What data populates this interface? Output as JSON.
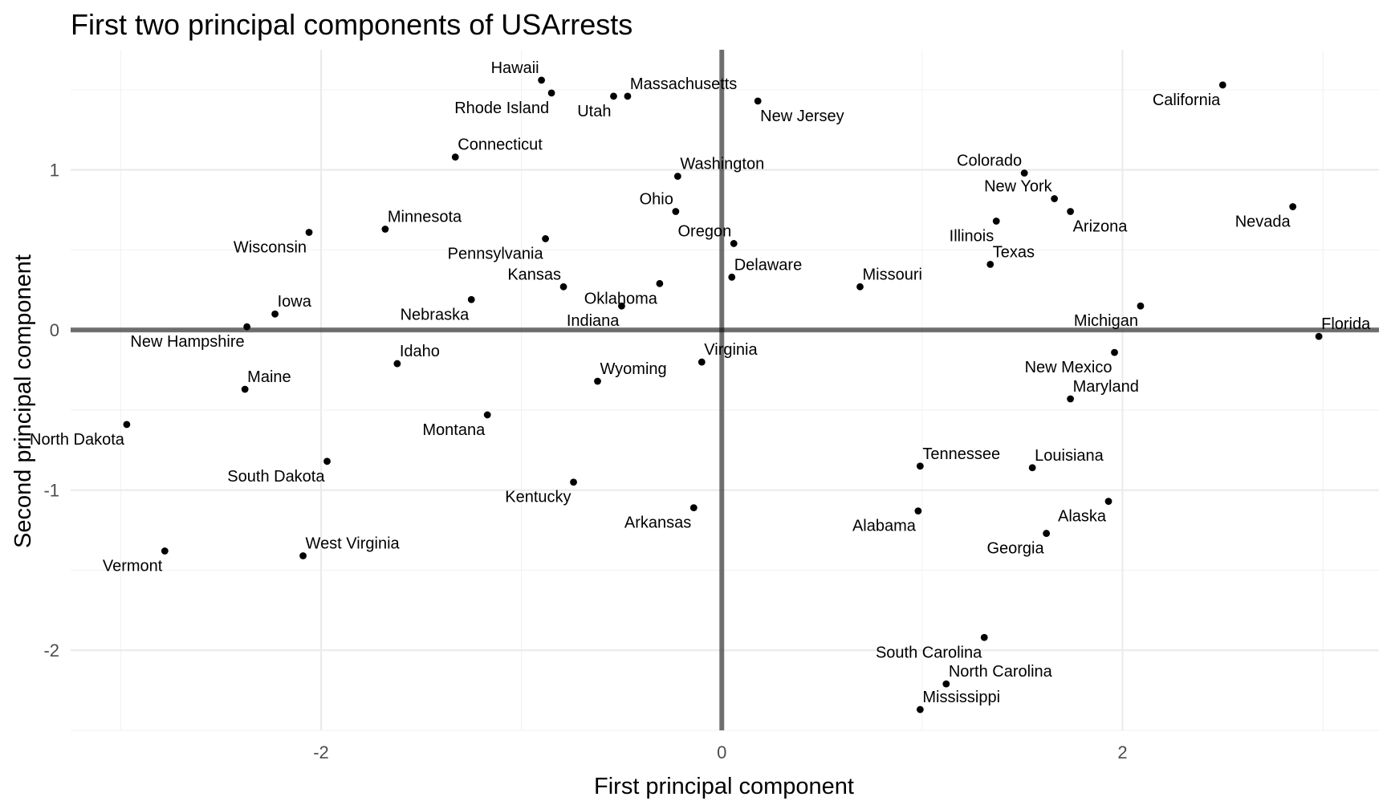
{
  "chart_data": {
    "type": "scatter",
    "title": "First two principal components of USArrests",
    "xlabel": "First principal component",
    "ylabel": "Second principal component",
    "xlim": [
      -3.25,
      3.28
    ],
    "ylim": [
      -2.5,
      1.75
    ],
    "x_ticks": [
      -2,
      0,
      2
    ],
    "y_ticks": [
      -2,
      -1,
      0,
      1
    ],
    "x_tick_labels": [
      "-2",
      "0",
      "2"
    ],
    "y_tick_labels": [
      "-2",
      "-1",
      "0",
      "1"
    ],
    "grid": true,
    "reference_lines": {
      "x": 0,
      "y": 0
    },
    "points": [
      {
        "label": "Hawaii",
        "x": -0.9,
        "y": 1.56,
        "pos": "above-left"
      },
      {
        "label": "Rhode Island",
        "x": -0.85,
        "y": 1.48,
        "pos": "below-left"
      },
      {
        "label": "Utah",
        "x": -0.54,
        "y": 1.46,
        "pos": "below-left"
      },
      {
        "label": "Massachusetts",
        "x": -0.47,
        "y": 1.46,
        "pos": "above-right"
      },
      {
        "label": "New Jersey",
        "x": 0.18,
        "y": 1.43,
        "pos": "below-right"
      },
      {
        "label": "California",
        "x": 2.5,
        "y": 1.53,
        "pos": "below-left"
      },
      {
        "label": "Connecticut",
        "x": -1.33,
        "y": 1.08,
        "pos": "above-right"
      },
      {
        "label": "Washington",
        "x": -0.22,
        "y": 0.96,
        "pos": "above-right"
      },
      {
        "label": "Colorado",
        "x": 1.51,
        "y": 0.98,
        "pos": "above-left"
      },
      {
        "label": "Ohio",
        "x": -0.23,
        "y": 0.74,
        "pos": "above-left"
      },
      {
        "label": "New York",
        "x": 1.66,
        "y": 0.82,
        "pos": "above-left"
      },
      {
        "label": "Arizona",
        "x": 1.74,
        "y": 0.74,
        "pos": "below-right"
      },
      {
        "label": "Nevada",
        "x": 2.85,
        "y": 0.77,
        "pos": "below-left"
      },
      {
        "label": "Minnesota",
        "x": -1.68,
        "y": 0.63,
        "pos": "above-right"
      },
      {
        "label": "Wisconsin",
        "x": -2.06,
        "y": 0.61,
        "pos": "below-left"
      },
      {
        "label": "Pennsylvania",
        "x": -0.88,
        "y": 0.57,
        "pos": "below-left"
      },
      {
        "label": "Oregon",
        "x": 0.06,
        "y": 0.54,
        "pos": "above-left"
      },
      {
        "label": "Illinois",
        "x": 1.37,
        "y": 0.68,
        "pos": "below-left"
      },
      {
        "label": "Texas",
        "x": 1.34,
        "y": 0.41,
        "pos": "above-right"
      },
      {
        "label": "Delaware",
        "x": 0.05,
        "y": 0.33,
        "pos": "above-right"
      },
      {
        "label": "Missouri",
        "x": 0.69,
        "y": 0.27,
        "pos": "above-right"
      },
      {
        "label": "Kansas",
        "x": -0.79,
        "y": 0.27,
        "pos": "above-left"
      },
      {
        "label": "Oklahoma",
        "x": -0.31,
        "y": 0.29,
        "pos": "below-left"
      },
      {
        "label": "Nebraska",
        "x": -1.25,
        "y": 0.19,
        "pos": "below-left"
      },
      {
        "label": "Indiana",
        "x": -0.5,
        "y": 0.15,
        "pos": "below-left"
      },
      {
        "label": "Iowa",
        "x": -2.23,
        "y": 0.1,
        "pos": "above-right"
      },
      {
        "label": "Michigan",
        "x": 2.09,
        "y": 0.15,
        "pos": "below-left"
      },
      {
        "label": "New Hampshire",
        "x": -2.37,
        "y": 0.02,
        "pos": "below-left"
      },
      {
        "label": "Florida",
        "x": 2.98,
        "y": -0.04,
        "pos": "above-right"
      },
      {
        "label": "Idaho",
        "x": -1.62,
        "y": -0.21,
        "pos": "above-right"
      },
      {
        "label": "Virginia",
        "x": -0.1,
        "y": -0.2,
        "pos": "above-right"
      },
      {
        "label": "New Mexico",
        "x": 1.96,
        "y": -0.14,
        "pos": "below-left"
      },
      {
        "label": "Wyoming",
        "x": -0.62,
        "y": -0.32,
        "pos": "above-right"
      },
      {
        "label": "Maine",
        "x": -2.38,
        "y": -0.37,
        "pos": "above-right"
      },
      {
        "label": "Maryland",
        "x": 1.74,
        "y": -0.43,
        "pos": "above-right"
      },
      {
        "label": "Montana",
        "x": -1.17,
        "y": -0.53,
        "pos": "below-left"
      },
      {
        "label": "North Dakota",
        "x": -2.97,
        "y": -0.59,
        "pos": "below-left"
      },
      {
        "label": "South Dakota",
        "x": -1.97,
        "y": -0.82,
        "pos": "below-left"
      },
      {
        "label": "Tennessee",
        "x": 0.99,
        "y": -0.85,
        "pos": "above-right"
      },
      {
        "label": "Louisiana",
        "x": 1.55,
        "y": -0.86,
        "pos": "above-right"
      },
      {
        "label": "Kentucky",
        "x": -0.74,
        "y": -0.95,
        "pos": "below-left"
      },
      {
        "label": "Alabama",
        "x": 0.98,
        "y": -1.13,
        "pos": "below-left"
      },
      {
        "label": "Arkansas",
        "x": -0.14,
        "y": -1.11,
        "pos": "below-left"
      },
      {
        "label": "Alaska",
        "x": 1.93,
        "y": -1.07,
        "pos": "below-left"
      },
      {
        "label": "Georgia",
        "x": 1.62,
        "y": -1.27,
        "pos": "below-left"
      },
      {
        "label": "West Virginia",
        "x": -2.09,
        "y": -1.41,
        "pos": "above-right"
      },
      {
        "label": "Vermont",
        "x": -2.78,
        "y": -1.38,
        "pos": "below-left"
      },
      {
        "label": "South Carolina",
        "x": 1.31,
        "y": -1.92,
        "pos": "below-left"
      },
      {
        "label": "North Carolina",
        "x": 1.12,
        "y": -2.21,
        "pos": "above-right"
      },
      {
        "label": "Mississippi",
        "x": 0.99,
        "y": -2.37,
        "pos": "above-right"
      }
    ]
  }
}
